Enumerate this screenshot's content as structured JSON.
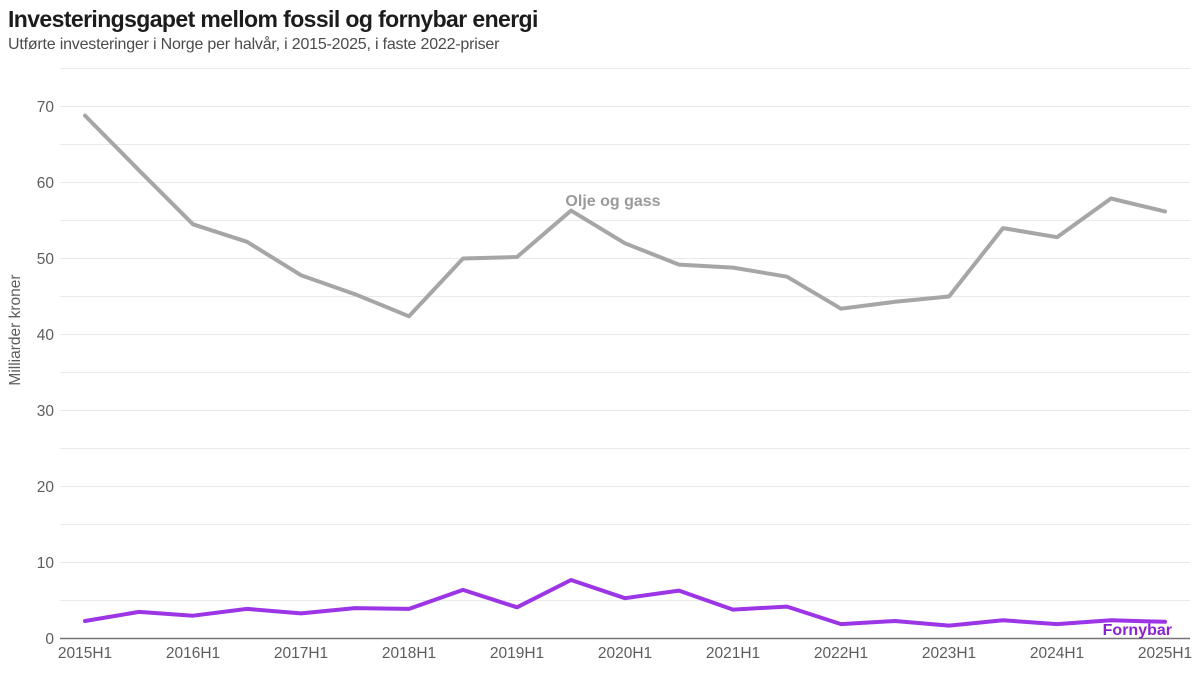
{
  "header": {
    "title": "Investeringsgapet mellom fossil og fornybar energi",
    "subtitle": "Utførte investeringer i Norge per halvår, i 2015-2025, i faste 2022-priser"
  },
  "colors": {
    "background": "#ffffff",
    "title": "#1c1c1c",
    "subtitle": "#4b4b4b",
    "tick_label": "#5d5d5d",
    "axis_title": "#5d5d5d",
    "gridline": "#e9e9e9",
    "axis_line": "#757575",
    "oil_gas_line": "#a6a6a6",
    "oil_gas_label": "#9a9a9a",
    "renewable_line": "#9b35e5",
    "renewable_label": "#8c22cf"
  },
  "chart_data": {
    "type": "line",
    "title": "Investeringsgapet mellom fossil og fornybar energi",
    "subtitle": "Utførte investeringer i Norge per halvår, i 2015-2025, i faste 2022-priser",
    "xlabel": "",
    "ylabel": "Milliarder kroner",
    "categories": [
      "2015H1",
      "2015H2",
      "2016H1",
      "2016H2",
      "2017H1",
      "2017H2",
      "2018H1",
      "2018H2",
      "2019H1",
      "2019H2",
      "2020H1",
      "2020H2",
      "2021H1",
      "2021H2",
      "2022H1",
      "2022H2",
      "2023H1",
      "2023H2",
      "2024H1",
      "2024H2",
      "2025H1"
    ],
    "x_tick_labels": [
      "2015H1",
      "2016H1",
      "2017H1",
      "2018H1",
      "2019H1",
      "2020H1",
      "2021H1",
      "2022H1",
      "2023H1",
      "2024H1",
      "2025H1"
    ],
    "y_ticks": [
      0,
      10,
      20,
      30,
      40,
      50,
      60,
      70
    ],
    "ylim": [
      0,
      75
    ],
    "grid": "horizontal lines every 5 units",
    "legend": "none (inline series labels on chart)",
    "series": [
      {
        "name": "Olje og gass",
        "color": "#a6a6a6",
        "label_color": "#9a9a9a",
        "values": [
          68.8,
          61.6,
          54.5,
          52.2,
          47.8,
          45.3,
          42.4,
          50.0,
          50.2,
          56.3,
          52.0,
          49.2,
          48.8,
          47.6,
          43.4,
          44.3,
          45.0,
          54.0,
          52.8,
          57.9,
          56.2
        ]
      },
      {
        "name": "Fornybar",
        "color": "#9b35e5",
        "label_color": "#8c22cf",
        "values": [
          2.3,
          3.5,
          3.0,
          3.9,
          3.3,
          4.0,
          3.9,
          6.4,
          4.1,
          7.7,
          5.3,
          6.3,
          3.8,
          4.2,
          1.9,
          2.3,
          1.7,
          2.4,
          1.9,
          2.4,
          2.2
        ]
      }
    ]
  }
}
